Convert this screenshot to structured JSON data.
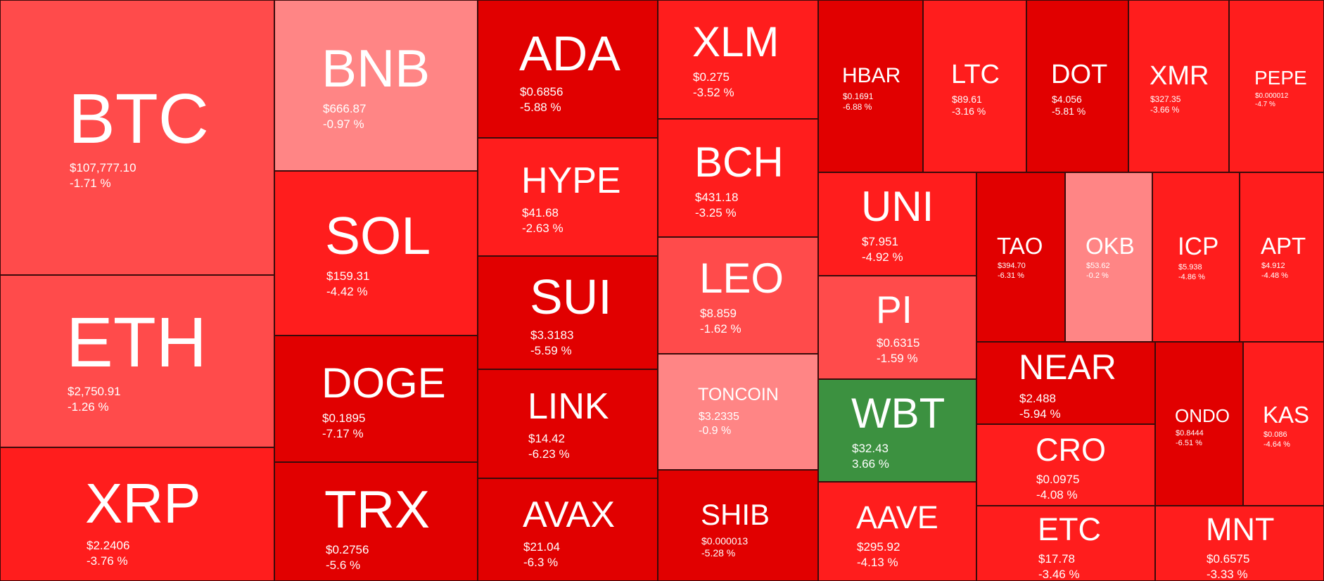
{
  "palette": {
    "dark_red": "#e10000",
    "red": "#ff1d1d",
    "mid_red": "#ff4b4b",
    "light_red": "#ff8585",
    "green": "#3c9140"
  },
  "coins": [
    {
      "symbol": "BTC",
      "price": "$107,777.10",
      "change": "-1.71 %",
      "color": "#ff4b4b"
    },
    {
      "symbol": "ETH",
      "price": "$2,750.91",
      "change": "-1.26 %",
      "color": "#ff4b4b"
    },
    {
      "symbol": "XRP",
      "price": "$2.2406",
      "change": "-3.76 %",
      "color": "#ff1d1d"
    },
    {
      "symbol": "BNB",
      "price": "$666.87",
      "change": "-0.97 %",
      "color": "#ff8585"
    },
    {
      "symbol": "SOL",
      "price": "$159.31",
      "change": "-4.42 %",
      "color": "#ff1d1d"
    },
    {
      "symbol": "DOGE",
      "price": "$0.1895",
      "change": "-7.17 %",
      "color": "#e10000"
    },
    {
      "symbol": "TRX",
      "price": "$0.2756",
      "change": "-5.6 %",
      "color": "#e10000"
    },
    {
      "symbol": "ADA",
      "price": "$0.6856",
      "change": "-5.88 %",
      "color": "#e10000"
    },
    {
      "symbol": "HYPE",
      "price": "$41.68",
      "change": "-2.63 %",
      "color": "#ff1d1d"
    },
    {
      "symbol": "SUI",
      "price": "$3.3183",
      "change": "-5.59 %",
      "color": "#e10000"
    },
    {
      "symbol": "LINK",
      "price": "$14.42",
      "change": "-6.23 %",
      "color": "#e10000"
    },
    {
      "symbol": "AVAX",
      "price": "$21.04",
      "change": "-6.3 %",
      "color": "#e10000"
    },
    {
      "symbol": "XLM",
      "price": "$0.275",
      "change": "-3.52 %",
      "color": "#ff1d1d"
    },
    {
      "symbol": "BCH",
      "price": "$431.18",
      "change": "-3.25 %",
      "color": "#ff1d1d"
    },
    {
      "symbol": "LEO",
      "price": "$8.859",
      "change": "-1.62 %",
      "color": "#ff4b4b"
    },
    {
      "symbol": "TONCOIN",
      "price": "$3.2335",
      "change": "-0.9 %",
      "color": "#ff8585"
    },
    {
      "symbol": "SHIB",
      "price": "$0.000013",
      "change": "-5.28 %",
      "color": "#e10000"
    },
    {
      "symbol": "HBAR",
      "price": "$0.1691",
      "change": "-6.88 %",
      "color": "#e10000"
    },
    {
      "symbol": "LTC",
      "price": "$89.61",
      "change": "-3.16 %",
      "color": "#ff1d1d"
    },
    {
      "symbol": "DOT",
      "price": "$4.056",
      "change": "-5.81 %",
      "color": "#e10000"
    },
    {
      "symbol": "XMR",
      "price": "$327.35",
      "change": "-3.66 %",
      "color": "#ff1d1d"
    },
    {
      "symbol": "PEPE",
      "price": "$0.000012",
      "change": "-4.7 %",
      "color": "#ff1d1d"
    },
    {
      "symbol": "UNI",
      "price": "$7.951",
      "change": "-4.92 %",
      "color": "#ff1d1d"
    },
    {
      "symbol": "PI",
      "price": "$0.6315",
      "change": "-1.59 %",
      "color": "#ff4b4b"
    },
    {
      "symbol": "WBT",
      "price": "$32.43",
      "change": "3.66 %",
      "color": "#3c9140"
    },
    {
      "symbol": "AAVE",
      "price": "$295.92",
      "change": "-4.13 %",
      "color": "#ff1d1d"
    },
    {
      "symbol": "TAO",
      "price": "$394.70",
      "change": "-6.31 %",
      "color": "#e10000"
    },
    {
      "symbol": "OKB",
      "price": "$53.62",
      "change": "-0.2 %",
      "color": "#ff8585"
    },
    {
      "symbol": "ICP",
      "price": "$5.938",
      "change": "-4.86 %",
      "color": "#ff1d1d"
    },
    {
      "symbol": "APT",
      "price": "$4.912",
      "change": "-4.48 %",
      "color": "#ff1d1d"
    },
    {
      "symbol": "NEAR",
      "price": "$2.488",
      "change": "-5.94 %",
      "color": "#e10000"
    },
    {
      "symbol": "CRO",
      "price": "$0.0975",
      "change": "-4.08 %",
      "color": "#ff1d1d"
    },
    {
      "symbol": "ETC",
      "price": "$17.78",
      "change": "-3.46 %",
      "color": "#ff1d1d"
    },
    {
      "symbol": "ONDO",
      "price": "$0.8444",
      "change": "-6.51 %",
      "color": "#e10000"
    },
    {
      "symbol": "KAS",
      "price": "$0.086",
      "change": "-4.64 %",
      "color": "#ff1d1d"
    },
    {
      "symbol": "MNT",
      "price": "$0.6575",
      "change": "-3.33 %",
      "color": "#ff1d1d"
    }
  ]
}
